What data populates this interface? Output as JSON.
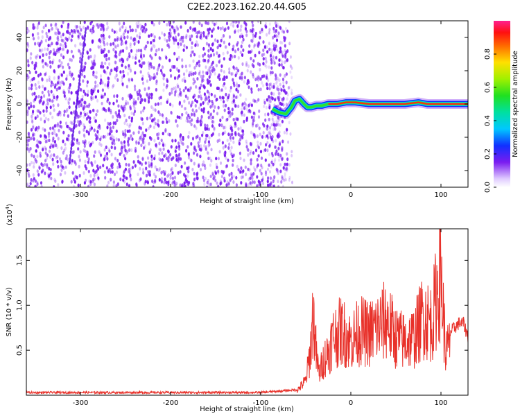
{
  "title": "C2E2.2023.162.20.44.G05",
  "colors": {
    "snr_line": "#e8312a",
    "spectrogram_dots": "#7a1cf0",
    "frame": "#000000"
  },
  "chart_data": [
    {
      "type": "heatmap",
      "name": "spectrogram",
      "xlabel": "Height of straight line (km)",
      "ylabel": "Frequency (Hz)",
      "xlim": [
        -360,
        130
      ],
      "ylim": [
        -50,
        50
      ],
      "xticks": [
        -300,
        -200,
        -100,
        0,
        100
      ],
      "yticks": [
        -40,
        -20,
        0,
        20,
        40
      ],
      "signal_trace": {
        "x": [
          -87,
          -80,
          -72,
          -66,
          -62,
          -57,
          -52,
          -48,
          -44,
          -38,
          -32,
          -25,
          -15,
          -5,
          5,
          20,
          40,
          60,
          75,
          85,
          95,
          105,
          115,
          130
        ],
        "y": [
          -3,
          -5,
          -6,
          -2,
          2,
          3,
          0,
          -2,
          -2,
          -1,
          -1,
          0,
          0,
          1,
          1,
          0,
          0,
          0,
          1,
          0,
          0,
          0,
          0,
          0
        ]
      },
      "colorbar": {
        "label": "Normalized spectral amplitude",
        "ticks": [
          0.0,
          0.2,
          0.4,
          0.6,
          0.8
        ],
        "range": [
          0,
          1
        ]
      }
    },
    {
      "type": "line",
      "name": "snr",
      "xlabel": "Height of straight line (km)",
      "ylabel": "SNR (10 * v/v)",
      "exponent_label": "(x10",
      "exponent_power": "4",
      "exponent_close": ")",
      "xlim": [
        -360,
        130
      ],
      "ylim": [
        0,
        18500
      ],
      "xticks": [
        -300,
        -200,
        -100,
        0,
        100
      ],
      "yticks": [
        0.5,
        1.0,
        1.5
      ],
      "ytick_labels": [
        "0.5",
        "1.0",
        "1.5"
      ],
      "series": [
        {
          "x": [
            -360,
            -100,
            -60,
            -50,
            -45,
            -42,
            -40,
            -38,
            -35,
            -30,
            -25,
            -20,
            -10,
            0,
            10,
            20,
            30,
            40,
            50,
            60,
            70,
            80,
            90,
            95,
            100,
            105,
            110,
            115,
            120,
            125,
            130
          ],
          "y": [
            300,
            300,
            600,
            2000,
            6000,
            11000,
            9000,
            5000,
            3000,
            5000,
            6000,
            8000,
            9000,
            7500,
            9000,
            8500,
            9500,
            10500,
            8000,
            7500,
            8000,
            11000,
            10000,
            14000,
            17000,
            6000,
            7000,
            7500,
            8000,
            8000,
            6500
          ]
        }
      ]
    }
  ]
}
